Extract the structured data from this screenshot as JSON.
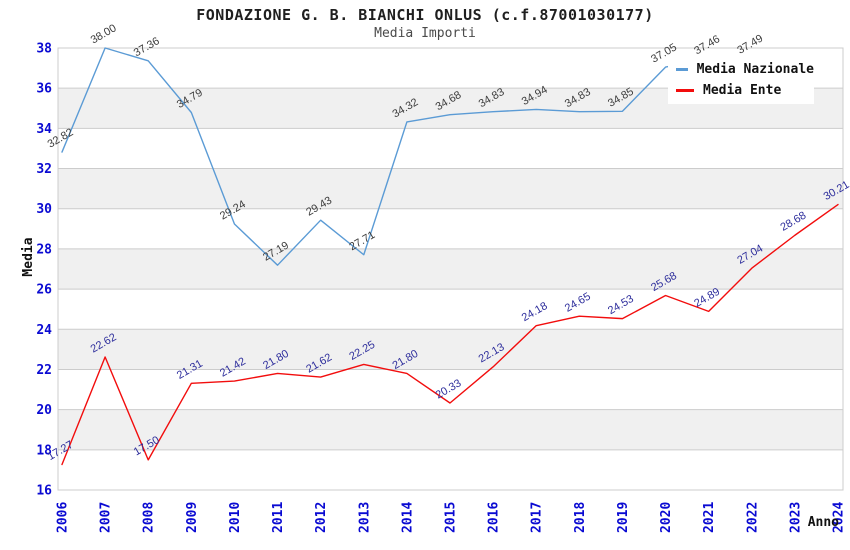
{
  "chart_data": {
    "type": "line",
    "title": "FONDAZIONE G. B. BIANCHI ONLUS (c.f.87001030177)",
    "subtitle": "Media Importi",
    "xlabel": "Anno",
    "ylabel": "Media",
    "categories": [
      "2006",
      "2007",
      "2008",
      "2009",
      "2010",
      "2011",
      "2012",
      "2013",
      "2014",
      "2015",
      "2016",
      "2017",
      "2018",
      "2019",
      "2020",
      "2021",
      "2022",
      "2023",
      "2024"
    ],
    "series": [
      {
        "name": "Media Nazionale",
        "color": "#5b9bd5",
        "label_color": "#3c3c3c",
        "values": [
          32.82,
          38.0,
          37.36,
          34.79,
          29.24,
          27.19,
          29.43,
          27.71,
          34.32,
          34.68,
          34.83,
          34.94,
          34.83,
          34.85,
          37.05,
          37.46,
          37.49,
          null,
          null
        ]
      },
      {
        "name": "Media Ente",
        "color": "#f20d0d",
        "label_color": "#2e2e9c",
        "values": [
          17.27,
          22.62,
          17.5,
          21.31,
          21.42,
          21.8,
          21.62,
          22.25,
          21.8,
          20.33,
          22.13,
          24.18,
          24.65,
          24.53,
          25.68,
          24.89,
          27.04,
          28.68,
          30.21
        ]
      }
    ],
    "ylim": [
      16,
      38
    ],
    "ytick_step": 2,
    "grid": true,
    "tick_color": "#0a0ad2",
    "grid_color": "#cccccc",
    "band_color": "#f0f0f0",
    "legend_position": "top-right"
  }
}
